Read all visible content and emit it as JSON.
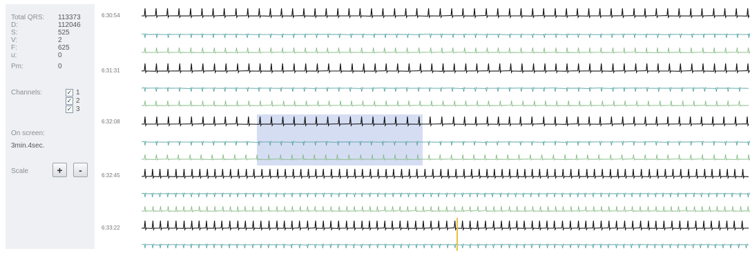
{
  "stats": [
    {
      "label": "Total QRS:",
      "value": "113373"
    },
    {
      "label": "D:",
      "value": "112046"
    },
    {
      "label": "S:",
      "value": "525"
    },
    {
      "label": "V:",
      "value": "2"
    },
    {
      "label": "F:",
      "value": "625"
    },
    {
      "label": "u:",
      "value": "0"
    },
    {
      "label": "Pm:",
      "value": "0"
    }
  ],
  "channels": {
    "label": "Channels:",
    "items": [
      {
        "label": "1",
        "checked": true
      },
      {
        "label": "2",
        "checked": true
      },
      {
        "label": "3",
        "checked": true
      }
    ]
  },
  "on_screen": {
    "label": "On screen:",
    "value": "3min.4sec."
  },
  "scale": {
    "label": "Scale",
    "plus": "+",
    "minus": "-"
  },
  "time_labels": [
    "6:30:54",
    "6:31:31",
    "6:32:08",
    "6:32:45",
    "6:33:22"
  ],
  "colors": {
    "channel1": "#111111",
    "channel2": "#5aa4a4",
    "channel3": "#86bb86",
    "selection": "#c7d2ef",
    "marker": "#e8c040",
    "sidebar_bg": "#eef0f3"
  }
}
